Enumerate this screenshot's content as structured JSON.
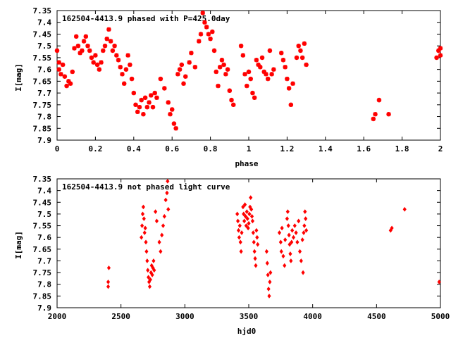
{
  "chart_data": [
    {
      "type": "scatter",
      "title": "162504-4413.9 phased with P=425.0day",
      "xlabel": "phase",
      "ylabel": "I[mag]",
      "xlim": [
        0,
        2
      ],
      "ylim": [
        7.9,
        7.35
      ],
      "y_inverted": true,
      "xticks": [
        "0",
        "0.2",
        "0.4",
        "0.6",
        "0.8",
        "1",
        "1.2",
        "1.4",
        "1.6",
        "1.8",
        "2"
      ],
      "yticks": [
        "7.35",
        "7.4",
        "7.45",
        "7.5",
        "7.55",
        "7.6",
        "7.65",
        "7.7",
        "7.75",
        "7.8",
        "7.85",
        "7.9"
      ],
      "marker_color": "#ff0000",
      "marker": "star",
      "grid": false,
      "series": [
        {
          "points": [
            [
              0.0,
              7.52
            ],
            [
              0.01,
              7.57
            ],
            [
              0.01,
              7.6
            ],
            [
              0.02,
              7.62
            ],
            [
              0.03,
              7.58
            ],
            [
              0.04,
              7.63
            ],
            [
              0.05,
              7.67
            ],
            [
              0.06,
              7.65
            ],
            [
              0.07,
              7.66
            ],
            [
              0.08,
              7.61
            ],
            [
              0.09,
              7.51
            ],
            [
              0.1,
              7.46
            ],
            [
              0.11,
              7.5
            ],
            [
              0.12,
              7.53
            ],
            [
              0.13,
              7.52
            ],
            [
              0.14,
              7.48
            ],
            [
              0.15,
              7.46
            ],
            [
              0.16,
              7.5
            ],
            [
              0.17,
              7.52
            ],
            [
              0.18,
              7.55
            ],
            [
              0.19,
              7.57
            ],
            [
              0.2,
              7.54
            ],
            [
              0.21,
              7.58
            ],
            [
              0.22,
              7.6
            ],
            [
              0.23,
              7.57
            ],
            [
              0.24,
              7.52
            ],
            [
              0.25,
              7.5
            ],
            [
              0.26,
              7.47
            ],
            [
              0.27,
              7.43
            ],
            [
              0.28,
              7.48
            ],
            [
              0.29,
              7.52
            ],
            [
              0.3,
              7.5
            ],
            [
              0.31,
              7.54
            ],
            [
              0.32,
              7.56
            ],
            [
              0.33,
              7.59
            ],
            [
              0.34,
              7.62
            ],
            [
              0.35,
              7.66
            ],
            [
              0.36,
              7.6
            ],
            [
              0.37,
              7.54
            ],
            [
              0.38,
              7.58
            ],
            [
              0.39,
              7.64
            ],
            [
              0.4,
              7.7
            ],
            [
              0.41,
              7.75
            ],
            [
              0.42,
              7.78
            ],
            [
              0.43,
              7.76
            ],
            [
              0.44,
              7.73
            ],
            [
              0.45,
              7.79
            ],
            [
              0.46,
              7.72
            ],
            [
              0.47,
              7.76
            ],
            [
              0.48,
              7.74
            ],
            [
              0.49,
              7.71
            ],
            [
              0.5,
              7.76
            ],
            [
              0.51,
              7.7
            ],
            [
              0.52,
              7.72
            ],
            [
              0.54,
              7.64
            ],
            [
              0.56,
              7.68
            ],
            [
              0.58,
              7.74
            ],
            [
              0.59,
              7.79
            ],
            [
              0.6,
              7.77
            ],
            [
              0.61,
              7.83
            ],
            [
              0.62,
              7.85
            ],
            [
              0.63,
              7.62
            ],
            [
              0.64,
              7.6
            ],
            [
              0.65,
              7.58
            ],
            [
              0.66,
              7.66
            ],
            [
              0.67,
              7.63
            ],
            [
              0.69,
              7.57
            ],
            [
              0.7,
              7.53
            ],
            [
              0.72,
              7.59
            ],
            [
              0.74,
              7.48
            ],
            [
              0.75,
              7.45
            ],
            [
              0.76,
              7.36
            ],
            [
              0.77,
              7.4
            ],
            [
              0.78,
              7.42
            ],
            [
              0.79,
              7.45
            ],
            [
              0.8,
              7.47
            ],
            [
              0.81,
              7.44
            ],
            [
              0.82,
              7.52
            ],
            [
              0.83,
              7.61
            ],
            [
              0.84,
              7.67
            ],
            [
              0.85,
              7.59
            ],
            [
              0.86,
              7.56
            ],
            [
              0.87,
              7.58
            ],
            [
              0.88,
              7.62
            ],
            [
              0.89,
              7.6
            ],
            [
              0.9,
              7.69
            ],
            [
              0.91,
              7.73
            ],
            [
              0.92,
              7.75
            ],
            [
              0.96,
              7.5
            ],
            [
              0.97,
              7.54
            ],
            [
              0.98,
              7.62
            ],
            [
              0.99,
              7.67
            ],
            [
              1.0,
              7.61
            ],
            [
              1.01,
              7.64
            ],
            [
              1.02,
              7.7
            ],
            [
              1.03,
              7.72
            ],
            [
              1.04,
              7.56
            ],
            [
              1.05,
              7.58
            ],
            [
              1.06,
              7.59
            ],
            [
              1.07,
              7.55
            ],
            [
              1.08,
              7.61
            ],
            [
              1.09,
              7.62
            ],
            [
              1.1,
              7.64
            ],
            [
              1.11,
              7.52
            ],
            [
              1.12,
              7.62
            ],
            [
              1.13,
              7.6
            ],
            [
              1.17,
              7.53
            ],
            [
              1.18,
              7.56
            ],
            [
              1.19,
              7.59
            ],
            [
              1.2,
              7.64
            ],
            [
              1.21,
              7.68
            ],
            [
              1.22,
              7.75
            ],
            [
              1.23,
              7.66
            ],
            [
              1.25,
              7.55
            ],
            [
              1.26,
              7.5
            ],
            [
              1.27,
              7.52
            ],
            [
              1.28,
              7.55
            ],
            [
              1.29,
              7.49
            ],
            [
              1.3,
              7.58
            ],
            [
              1.65,
              7.81
            ],
            [
              1.66,
              7.79
            ],
            [
              1.68,
              7.73
            ],
            [
              1.73,
              7.79
            ],
            [
              1.98,
              7.55
            ],
            [
              1.99,
              7.52
            ],
            [
              2.0,
              7.51
            ],
            [
              2.0,
              7.54
            ]
          ]
        }
      ]
    },
    {
      "type": "scatter",
      "title": "162504-4413.9 not phased light curve",
      "xlabel": "hjd0",
      "ylabel": "I[mag]",
      "xlim": [
        2000,
        5000
      ],
      "ylim": [
        7.9,
        7.35
      ],
      "y_inverted": true,
      "xticks": [
        "2000",
        "2500",
        "3000",
        "3500",
        "4000",
        "4500",
        "5000"
      ],
      "yticks": [
        "7.35",
        "7.4",
        "7.45",
        "7.5",
        "7.55",
        "7.6",
        "7.65",
        "7.7",
        "7.75",
        "7.8",
        "7.85",
        "7.9"
      ],
      "marker_color": "#ff0000",
      "marker": "diamond",
      "grid": false,
      "series": [
        {
          "points": [
            [
              2400,
              7.79
            ],
            [
              2400,
              7.81
            ],
            [
              2405,
              7.73
            ],
            [
              2660,
              7.6
            ],
            [
              2665,
              7.55
            ],
            [
              2670,
              7.5
            ],
            [
              2675,
              7.47
            ],
            [
              2680,
              7.52
            ],
            [
              2685,
              7.58
            ],
            [
              2690,
              7.56
            ],
            [
              2695,
              7.62
            ],
            [
              2700,
              7.66
            ],
            [
              2705,
              7.7
            ],
            [
              2710,
              7.74
            ],
            [
              2715,
              7.77
            ],
            [
              2720,
              7.79
            ],
            [
              2725,
              7.81
            ],
            [
              2730,
              7.78
            ],
            [
              2735,
              7.75
            ],
            [
              2740,
              7.72
            ],
            [
              2745,
              7.76
            ],
            [
              2750,
              7.73
            ],
            [
              2755,
              7.7
            ],
            [
              2760,
              7.74
            ],
            [
              2770,
              7.49
            ],
            [
              2780,
              7.53
            ],
            [
              2800,
              7.62
            ],
            [
              2810,
              7.66
            ],
            [
              2820,
              7.59
            ],
            [
              2830,
              7.55
            ],
            [
              2840,
              7.51
            ],
            [
              2850,
              7.44
            ],
            [
              2860,
              7.41
            ],
            [
              2865,
              7.36
            ],
            [
              2870,
              7.48
            ],
            [
              3410,
              7.5
            ],
            [
              3415,
              7.53
            ],
            [
              3420,
              7.57
            ],
            [
              3425,
              7.6
            ],
            [
              3430,
              7.55
            ],
            [
              3435,
              7.62
            ],
            [
              3440,
              7.66
            ],
            [
              3445,
              7.58
            ],
            [
              3455,
              7.47
            ],
            [
              3460,
              7.5
            ],
            [
              3465,
              7.53
            ],
            [
              3470,
              7.46
            ],
            [
              3475,
              7.51
            ],
            [
              3480,
              7.55
            ],
            [
              3485,
              7.49
            ],
            [
              3490,
              7.52
            ],
            [
              3495,
              7.56
            ],
            [
              3500,
              7.54
            ],
            [
              3505,
              7.5
            ],
            [
              3510,
              7.47
            ],
            [
              3515,
              7.43
            ],
            [
              3520,
              7.48
            ],
            [
              3525,
              7.51
            ],
            [
              3530,
              7.53
            ],
            [
              3535,
              7.58
            ],
            [
              3540,
              7.62
            ],
            [
              3545,
              7.66
            ],
            [
              3550,
              7.69
            ],
            [
              3555,
              7.72
            ],
            [
              3560,
              7.57
            ],
            [
              3565,
              7.6
            ],
            [
              3570,
              7.63
            ],
            [
              3640,
              7.66
            ],
            [
              3645,
              7.71
            ],
            [
              3650,
              7.76
            ],
            [
              3655,
              7.82
            ],
            [
              3660,
              7.85
            ],
            [
              3665,
              7.79
            ],
            [
              3670,
              7.75
            ],
            [
              3740,
              7.58
            ],
            [
              3750,
              7.62
            ],
            [
              3755,
              7.66
            ],
            [
              3760,
              7.56
            ],
            [
              3770,
              7.68
            ],
            [
              3780,
              7.72
            ],
            [
              3785,
              7.61
            ],
            [
              3800,
              7.52
            ],
            [
              3805,
              7.49
            ],
            [
              3810,
              7.55
            ],
            [
              3815,
              7.59
            ],
            [
              3820,
              7.63
            ],
            [
              3825,
              7.67
            ],
            [
              3830,
              7.7
            ],
            [
              3835,
              7.62
            ],
            [
              3840,
              7.57
            ],
            [
              3850,
              7.6
            ],
            [
              3860,
              7.55
            ],
            [
              3870,
              7.58
            ],
            [
              3880,
              7.62
            ],
            [
              3890,
              7.53
            ],
            [
              3900,
              7.66
            ],
            [
              3910,
              7.7
            ],
            [
              3920,
              7.61
            ],
            [
              3925,
              7.75
            ],
            [
              3930,
              7.58
            ],
            [
              3935,
              7.55
            ],
            [
              3940,
              7.49
            ],
            [
              3945,
              7.52
            ],
            [
              3950,
              7.57
            ],
            [
              4610,
              7.57
            ],
            [
              4620,
              7.56
            ],
            [
              4720,
              7.48
            ],
            [
              4990,
              7.79
            ]
          ]
        }
      ]
    }
  ]
}
